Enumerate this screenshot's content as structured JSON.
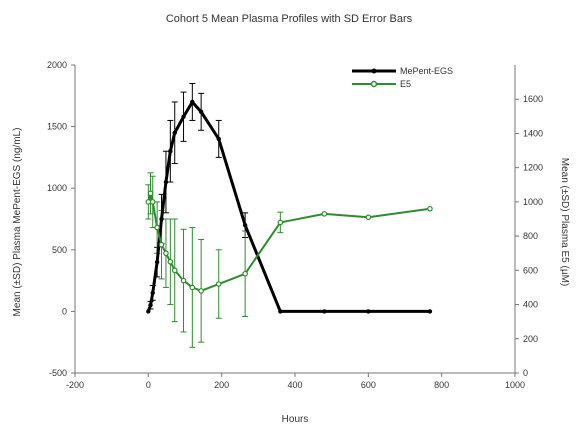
{
  "chart_data": {
    "type": "line",
    "title": "Cohort 5 Mean Plasma Profiles with SD Error Bars",
    "xlabel": "Hours",
    "ylabel_left": "Mean (±SD) Plasma MePent-EGS (ng/mL)",
    "ylabel_right": "Mean (±SD) Plasma E5 (µM)",
    "xlim": [
      -200,
      1000
    ],
    "ylim_left": [
      -500,
      2000
    ],
    "ylim_right": [
      0,
      1800
    ],
    "x_ticks": [
      "-200",
      "0",
      "200",
      "400",
      "600",
      "800",
      "1000"
    ],
    "y_left_ticks": [
      "-500",
      "0",
      "500",
      "1000",
      "1500",
      "2000"
    ],
    "y_right_ticks": [
      "0",
      "200",
      "400",
      "600",
      "800",
      "1000",
      "1200",
      "1400",
      "1600"
    ],
    "series": [
      {
        "name": "MePent-EGS",
        "axis": "left",
        "color": "#000000",
        "x": [
          0,
          6,
          12,
          24,
          36,
          48,
          60,
          72,
          96,
          120,
          144,
          192,
          264,
          360,
          480,
          600,
          768
        ],
        "y": [
          0,
          50,
          150,
          400,
          750,
          1050,
          1300,
          1450,
          1580,
          1700,
          1620,
          1400,
          700,
          0,
          0,
          0,
          0
        ],
        "sd": [
          0,
          30,
          60,
          120,
          200,
          250,
          250,
          250,
          200,
          150,
          150,
          150,
          100,
          0,
          0,
          0,
          0
        ]
      },
      {
        "name": "E5",
        "axis": "right",
        "color": "#2e8b2e",
        "x": [
          0,
          6,
          12,
          24,
          36,
          48,
          60,
          72,
          96,
          120,
          144,
          192,
          264,
          360,
          480,
          600,
          768
        ],
        "y": [
          1000,
          1050,
          1000,
          850,
          750,
          700,
          650,
          600,
          540,
          500,
          480,
          520,
          580,
          880,
          930,
          910,
          960
        ],
        "sd": [
          100,
          120,
          150,
          150,
          200,
          200,
          250,
          300,
          300,
          350,
          300,
          200,
          250,
          60,
          0,
          0,
          0
        ]
      }
    ],
    "grid": false,
    "legend_position": "top-right"
  }
}
